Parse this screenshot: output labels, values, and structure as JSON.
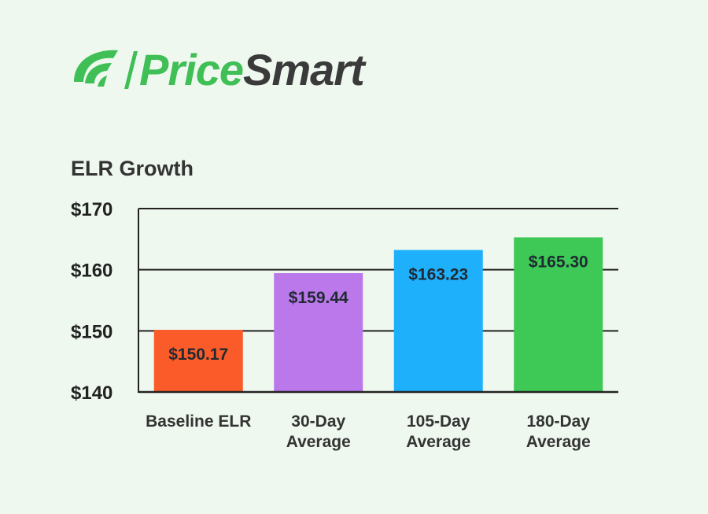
{
  "brand": {
    "name_part1": "Price",
    "name_part2": "Smart",
    "color": "#3fbf55"
  },
  "chart_data": {
    "type": "bar",
    "title": "ELR Growth",
    "categories": [
      [
        "Baseline ELR"
      ],
      [
        "30-Day",
        "Average"
      ],
      [
        "105-Day",
        "Average"
      ],
      [
        "180-Day",
        "Average"
      ]
    ],
    "values": [
      150.17,
      159.44,
      163.23,
      165.3
    ],
    "data_labels": [
      "$150.17",
      "$159.44",
      "$163.23",
      "$165.30"
    ],
    "colors": [
      "#fb5b28",
      "#bb78ea",
      "#1fb0fb",
      "#3ec856"
    ],
    "ylim": [
      140,
      170
    ],
    "yticks": [
      140,
      150,
      160,
      170
    ],
    "ytick_labels": [
      "$140",
      "$150",
      "$160",
      "$170"
    ],
    "xlabel": "",
    "ylabel": "",
    "grid": true
  }
}
